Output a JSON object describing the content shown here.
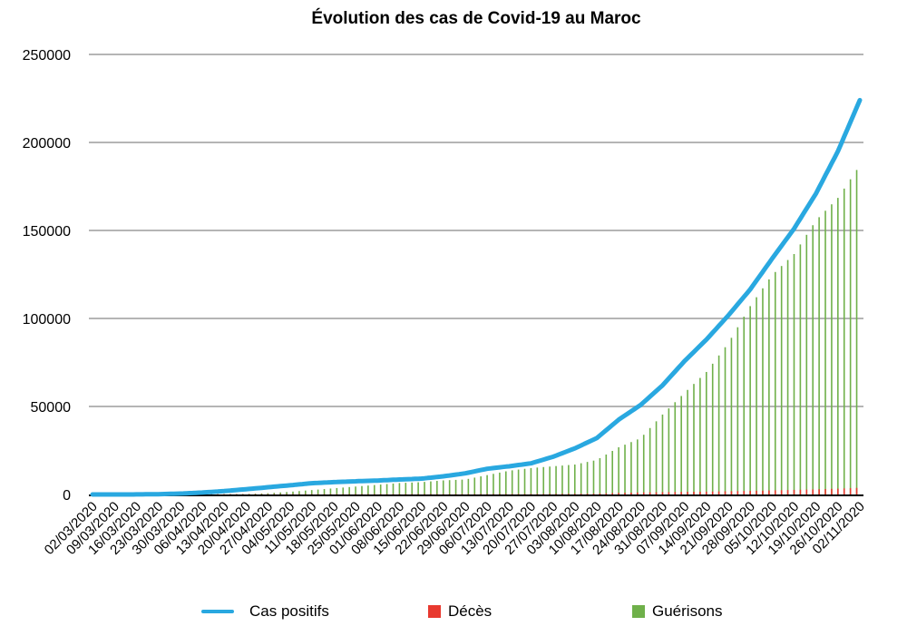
{
  "chart_data": {
    "type": "bar+line",
    "title": "Évolution des cas de Covid-19 au Maroc",
    "xlabel": "",
    "ylabel": "",
    "ylim": [
      0,
      250000
    ],
    "yticks": [
      "0",
      "50000",
      "100000",
      "150000",
      "200000",
      "250000"
    ],
    "ytick_values": [
      0,
      50000,
      100000,
      150000,
      200000,
      250000
    ],
    "grid": true,
    "legend_position": "bottom",
    "categories": [
      "02/03/2020",
      "09/03/2020",
      "16/03/2020",
      "23/03/2020",
      "30/03/2020",
      "06/04/2020",
      "13/04/2020",
      "20/04/2020",
      "27/04/2020",
      "04/05/2020",
      "11/05/2020",
      "18/05/2020",
      "25/05/2020",
      "01/06/2020",
      "08/06/2020",
      "15/06/2020",
      "22/06/2020",
      "29/06/2020",
      "06/07/2020",
      "13/07/2020",
      "20/07/2020",
      "27/07/2020",
      "03/08/2020",
      "10/08/2020",
      "17/08/2020",
      "24/08/2020",
      "31/08/2020",
      "07/09/2020",
      "14/09/2020",
      "21/09/2020",
      "28/09/2020",
      "05/10/2020",
      "12/10/2020",
      "19/10/2020",
      "26/10/2020",
      "02/11/2020"
    ],
    "series": [
      {
        "name": "Cas positifs",
        "type": "line",
        "color": "#29a8e0",
        "values": [
          0,
          0,
          30,
          150,
          500,
          1100,
          1900,
          3000,
          4100,
          5200,
          6400,
          7000,
          7500,
          7900,
          8500,
          9000,
          10300,
          12000,
          14600,
          16000,
          17700,
          21400,
          26200,
          32000,
          42500,
          50800,
          62000,
          75700,
          88000,
          101700,
          116500,
          134000,
          151000,
          171000,
          195000,
          224000
        ]
      },
      {
        "name": "Décès",
        "type": "bar",
        "color": "#e8392f",
        "values": [
          0,
          0,
          1,
          26,
          81,
          126,
          145,
          161,
          171,
          181,
          188,
          192,
          202,
          208,
          212,
          214,
          214,
          228,
          240,
          260,
          280,
          327,
          401,
          480,
          900,
          1150,
          1300,
          1500,
          1600,
          1850,
          2050,
          2300,
          2600,
          2900,
          3300,
          3800
        ]
      },
      {
        "name": "Guérisons",
        "type": "bar",
        "color": "#6fb04a",
        "values": [
          0,
          0,
          0,
          0,
          10,
          50,
          150,
          300,
          700,
          1500,
          2500,
          3500,
          4500,
          5500,
          6500,
          7000,
          8000,
          8500,
          11000,
          13500,
          15000,
          16000,
          17000,
          19600,
          26800,
          32000,
          45400,
          57700,
          69600,
          86000,
          107000,
          124700,
          136600,
          155700,
          168500,
          187000
        ]
      }
    ]
  }
}
